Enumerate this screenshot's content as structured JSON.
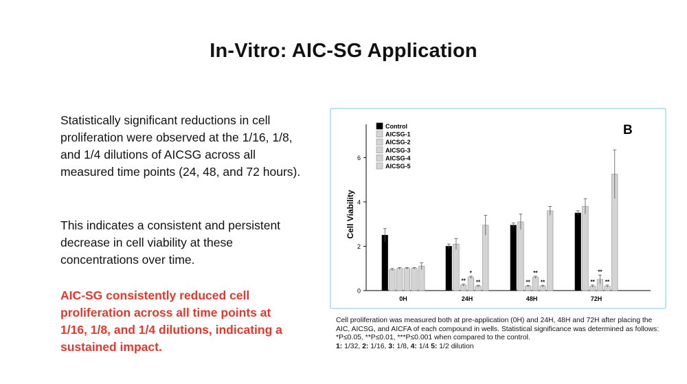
{
  "slide": {
    "title": "In-Vitro: AIC-SG Application",
    "paragraph1": "Statistically significant reductions in cell proliferation were observed at the 1/16, 1/8, and 1/4 dilutions of AICSG across all measured time points (24, 48, and 72 hours).",
    "paragraph2": "This indicates a consistent and persistent decrease in cell viability at these concentrations over time.",
    "highlight": "AIC-SG consistently reduced cell proliferation across all time points at 1/16, 1/8, and 1/4 dilutions, indicating a sustained impact.",
    "caption_line1": "Cell proliferation was measured both at pre-application (0H) and 24H, 48H and 72H after placing the AIC, AICSG, and AICFA of each compound in wells.  Statistical significance was determined as follows: *P≤0.05, **P≤0.01, ***P≤0.001 when compared to the control.",
    "caption_k1": "1:",
    "caption_v1": " 1/32, ",
    "caption_k2": "2:",
    "caption_v2": " 1/16, ",
    "caption_k3": "3:",
    "caption_v3": " 1/8, ",
    "caption_k4": "4:",
    "caption_v4": " 1/4 ",
    "caption_k5": "5:",
    "caption_v5": " 1/2 dilution"
  },
  "chart_data": {
    "type": "bar",
    "panel_label": "B",
    "ylabel": "Cell Viability",
    "xlabel": "",
    "ylim": [
      0,
      7.5
    ],
    "yticks": [
      0,
      2,
      4,
      6
    ],
    "categories": [
      "0H",
      "24H",
      "48H",
      "72H"
    ],
    "legend_position": "top-left",
    "colors": {
      "control": "#000000",
      "treated": "#d4d4d4"
    },
    "series": [
      {
        "name": "Control",
        "values": [
          2.5,
          2.0,
          2.95,
          3.5
        ],
        "errors": [
          0.3,
          0.1,
          0.1,
          0.1
        ],
        "sig": [
          "",
          "",
          "",
          ""
        ]
      },
      {
        "name": "AICSG-1",
        "values": [
          0.95,
          2.1,
          3.1,
          3.8
        ],
        "errors": [
          0.05,
          0.25,
          0.35,
          0.35
        ],
        "sig": [
          "",
          "",
          "",
          ""
        ]
      },
      {
        "name": "AICSG-2",
        "values": [
          1.0,
          0.25,
          0.2,
          0.2
        ],
        "errors": [
          0.04,
          0.04,
          0.04,
          0.05
        ],
        "sig": [
          "",
          "**",
          "**",
          "**"
        ]
      },
      {
        "name": "AICSG-3",
        "values": [
          1.0,
          0.6,
          0.6,
          0.5
        ],
        "errors": [
          0.04,
          0.05,
          0.05,
          0.2
        ],
        "sig": [
          "",
          "*",
          "**",
          "**"
        ]
      },
      {
        "name": "AICSG-4",
        "values": [
          1.0,
          0.2,
          0.2,
          0.2
        ],
        "errors": [
          0.04,
          0.04,
          0.04,
          0.05
        ],
        "sig": [
          "",
          "**",
          "**",
          "**"
        ]
      },
      {
        "name": "AICSG-5",
        "values": [
          1.1,
          2.95,
          3.6,
          5.25
        ],
        "errors": [
          0.15,
          0.45,
          0.2,
          1.1
        ],
        "sig": [
          "",
          "",
          "",
          ""
        ]
      }
    ]
  }
}
